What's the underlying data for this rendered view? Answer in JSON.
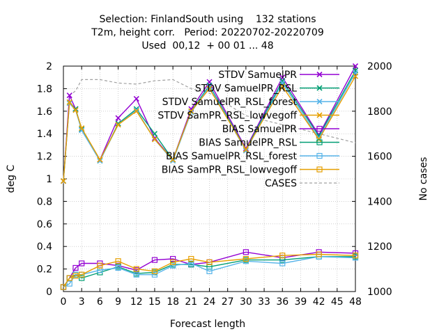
{
  "chart_data": {
    "type": "line",
    "title_lines": [
      "Selection: FinlandSouth using    132 stations",
      "T2m, height corr.   Period: 20220702-20220709",
      "Used  00,12  + 00 01 ... 48"
    ],
    "xlabel": "Forecast length",
    "ylabel": "deg C",
    "y2label": "No cases",
    "xlim": [
      0,
      48
    ],
    "ylim": [
      0,
      2
    ],
    "y2lim": [
      1000,
      2000
    ],
    "x_ticks": [
      0,
      3,
      6,
      9,
      12,
      15,
      18,
      21,
      24,
      27,
      30,
      33,
      36,
      39,
      42,
      45,
      48
    ],
    "y_ticks": [
      "0",
      "0.2",
      "0.4",
      "0.6",
      "0.8",
      "1",
      "1.2",
      "1.4",
      "1.6",
      "1.8",
      "2"
    ],
    "y2_ticks": [
      "1000",
      "1200",
      "1400",
      "1600",
      "1800",
      "2000"
    ],
    "grid": true,
    "legend_position": "top-right",
    "x": [
      0,
      1,
      2,
      3,
      6,
      9,
      12,
      15,
      18,
      21,
      24,
      30,
      36,
      42,
      48
    ],
    "series": [
      {
        "name": "STDV SamuelPR",
        "axis": "y1",
        "color": "#9400d3",
        "marker": "x",
        "values": [
          0.98,
          1.74,
          1.62,
          1.44,
          1.17,
          1.54,
          1.71,
          1.36,
          1.17,
          1.62,
          1.86,
          1.27,
          1.9,
          1.39,
          2.0
        ]
      },
      {
        "name": "STDV SamuelPR_RSL",
        "axis": "y1",
        "color": "#009e73",
        "marker": "x",
        "values": [
          0.98,
          1.68,
          1.62,
          1.44,
          1.16,
          1.49,
          1.62,
          1.4,
          1.17,
          1.6,
          1.83,
          1.26,
          1.87,
          1.38,
          1.96
        ]
      },
      {
        "name": "STDV SamuelPR_RSL_forest",
        "axis": "y1",
        "color": "#56b4e9",
        "marker": "x",
        "values": [
          0.98,
          1.67,
          1.61,
          1.43,
          1.16,
          1.48,
          1.61,
          1.35,
          1.16,
          1.59,
          1.82,
          1.25,
          1.85,
          1.36,
          1.94
        ]
      },
      {
        "name": "STDV SamPR_RSL_lowvegoff",
        "axis": "y1",
        "color": "#e69f00",
        "marker": "x",
        "values": [
          0.98,
          1.68,
          1.61,
          1.45,
          1.17,
          1.48,
          1.6,
          1.35,
          1.17,
          1.6,
          1.8,
          1.26,
          1.82,
          1.35,
          1.91
        ]
      },
      {
        "name": "BIAS SamuelPR",
        "axis": "y1",
        "color": "#9400d3",
        "marker": "square",
        "values": [
          0.04,
          0.12,
          0.21,
          0.25,
          0.25,
          0.23,
          0.19,
          0.28,
          0.29,
          0.24,
          0.26,
          0.35,
          0.3,
          0.35,
          0.34
        ]
      },
      {
        "name": "BIAS SamuelPR_RSL",
        "axis": "y1",
        "color": "#009e73",
        "marker": "square",
        "values": [
          0.04,
          0.12,
          0.15,
          0.12,
          0.17,
          0.22,
          0.16,
          0.17,
          0.24,
          0.24,
          0.22,
          0.28,
          0.28,
          0.31,
          0.31
        ]
      },
      {
        "name": "BIAS SamuelPR_RSL_forest",
        "axis": "y1",
        "color": "#56b4e9",
        "marker": "square",
        "values": [
          0.04,
          0.07,
          0.15,
          0.15,
          0.19,
          0.21,
          0.15,
          0.15,
          0.23,
          0.25,
          0.18,
          0.27,
          0.25,
          0.31,
          0.3
        ]
      },
      {
        "name": "BIAS SamPR_RSL_lowvegoff",
        "axis": "y1",
        "color": "#e69f00",
        "marker": "square",
        "values": [
          0.04,
          0.12,
          0.14,
          0.15,
          0.23,
          0.27,
          0.2,
          0.18,
          0.26,
          0.29,
          0.26,
          0.29,
          0.32,
          0.33,
          0.32
        ]
      },
      {
        "name": "CASES",
        "axis": "y2",
        "color": "#a0a0a0",
        "marker": "none",
        "dashed": true,
        "values": [
          1480,
          1870,
          1890,
          1940,
          1940,
          1925,
          1920,
          1935,
          1940,
          1900,
          1880,
          1780,
          1740,
          1700,
          1660
        ]
      }
    ]
  }
}
